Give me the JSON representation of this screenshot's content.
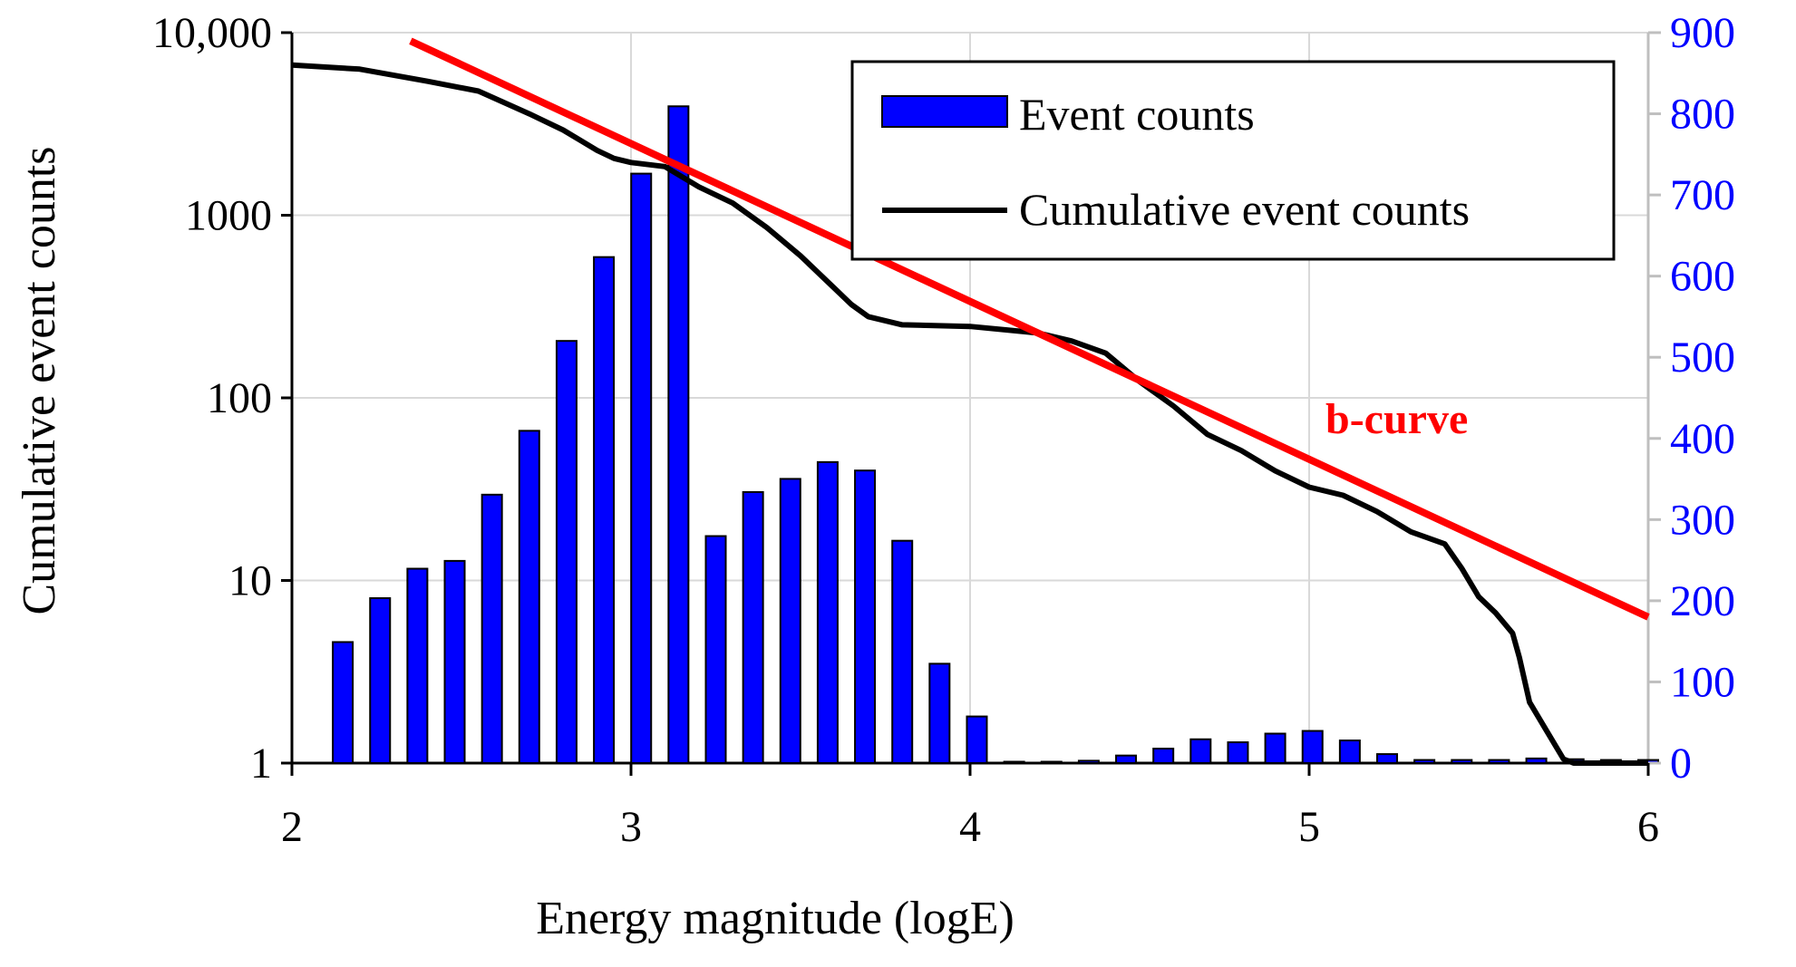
{
  "colors": {
    "bars": "#0000FF",
    "bar_outline": "#000000",
    "cumulative_line": "#000000",
    "fit_line": "#FF0000",
    "right_axis_labels": "#0000FF",
    "annotation": "#FF0000",
    "grid": "#D9D9D9"
  },
  "chart_data": {
    "type": "bar",
    "title": "",
    "xlabel": "Energy magnitude (logE)",
    "ylabel": "Cumulative event counts",
    "x_ticks": [
      "2",
      "3",
      "4",
      "5",
      "6"
    ],
    "xlim": [
      2,
      6
    ],
    "left_axis": {
      "scale": "log",
      "range": [
        1,
        10000
      ],
      "ticks": [
        1,
        10,
        100,
        1000,
        10000
      ],
      "tick_labels": [
        "1",
        "10",
        "100",
        "1000",
        "10,000"
      ]
    },
    "right_axis": {
      "scale": "linear",
      "range": [
        0,
        900
      ],
      "ticks": [
        0,
        100,
        200,
        300,
        400,
        500,
        600,
        700,
        800,
        900
      ],
      "tick_labels": [
        "0",
        "100",
        "200",
        "300",
        "400",
        "500",
        "600",
        "700",
        "800",
        "900"
      ]
    },
    "grid": true,
    "legend_position": "top-right",
    "legend": [
      "Event counts",
      "Cumulative event counts"
    ],
    "series": [
      {
        "name": "Event counts",
        "type": "bar",
        "axis": "left",
        "x": [
          2.15,
          2.26,
          2.37,
          2.48,
          2.59,
          2.7,
          2.81,
          2.92,
          3.03,
          3.14,
          3.25,
          3.36,
          3.47,
          3.58,
          3.69,
          3.8,
          3.91,
          4.02,
          4.13,
          4.24,
          4.35,
          4.46,
          4.57,
          4.68,
          4.79,
          4.9,
          5.01,
          5.12,
          5.23,
          5.34,
          5.45,
          5.56,
          5.67,
          5.78,
          5.89,
          6.0
        ],
        "values": [
          4.6,
          8,
          11.6,
          12.8,
          29.5,
          66,
          205,
          590,
          1690,
          3950,
          17.5,
          30.5,
          36,
          44.5,
          40,
          16.5,
          3.5,
          1.8,
          1,
          1,
          1.03,
          1.1,
          1.2,
          1.35,
          1.3,
          1.45,
          1.5,
          1.33,
          1.12,
          1.04,
          1.04,
          1.04,
          1.06,
          1.05,
          1.04,
          1.04
        ]
      },
      {
        "name": "Cumulative event counts",
        "type": "line",
        "axis": "right",
        "x": [
          2.0,
          2.2,
          2.4,
          2.55,
          2.7,
          2.8,
          2.9,
          2.95,
          3.0,
          3.1,
          3.2,
          3.3,
          3.4,
          3.5,
          3.6,
          3.65,
          3.7,
          3.8,
          4.0,
          4.2,
          4.3,
          4.4,
          4.5,
          4.6,
          4.7,
          4.8,
          4.9,
          5.0,
          5.1,
          5.2,
          5.3,
          5.4,
          5.45,
          5.5,
          5.55,
          5.6,
          5.62,
          5.65,
          5.7,
          5.75,
          5.78,
          6.0
        ],
        "values": [
          860,
          855,
          840,
          828,
          800,
          780,
          755,
          745,
          740,
          735,
          710,
          690,
          660,
          625,
          585,
          565,
          550,
          540,
          538,
          530,
          520,
          505,
          470,
          440,
          405,
          385,
          360,
          340,
          330,
          310,
          285,
          270,
          240,
          205,
          185,
          160,
          130,
          75,
          40,
          5,
          0,
          0
        ]
      }
    ],
    "fit_line": {
      "label": "b-curve",
      "x": [
        2.35,
        6.0
      ],
      "y_log": [
        9000,
        6.3
      ]
    }
  }
}
